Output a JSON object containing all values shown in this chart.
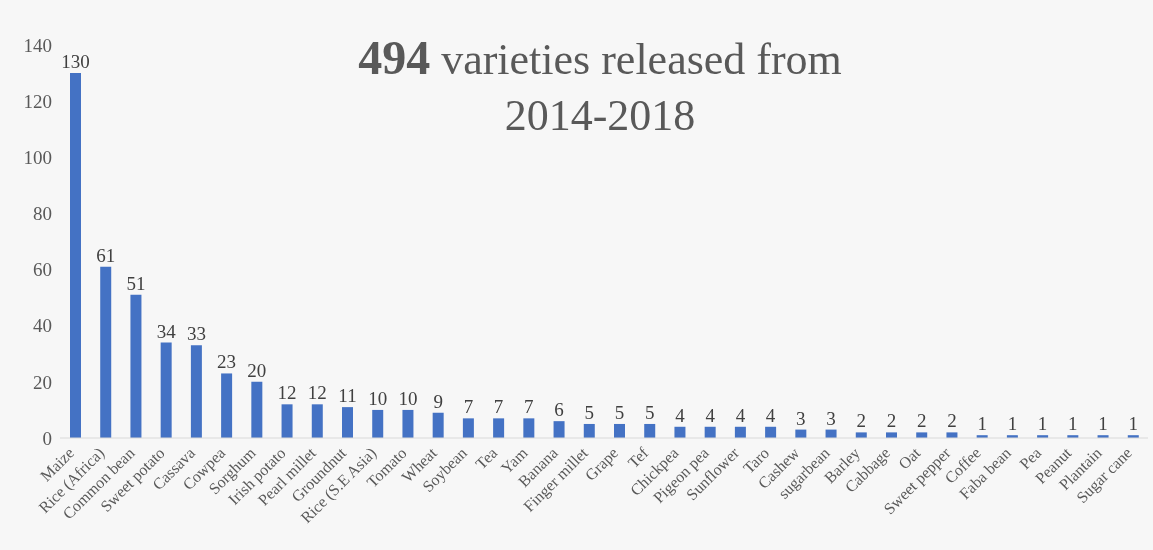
{
  "chart_data": {
    "type": "bar",
    "title": "494 varieties released from 2014-2018",
    "categories": [
      "Maize",
      "Rice (Africa)",
      "Common bean",
      "Sweet potato",
      "Cassava",
      "Cowpea",
      "Sorghum",
      "Irish potato",
      "Pearl millet",
      "Groundnut",
      "Rice (S.E Asia)",
      "Tomato",
      "Wheat",
      "Soybean",
      "Tea",
      "Yam",
      "Banana",
      "Finger millet",
      "Grape",
      "Tef",
      "Chickpea",
      "Pigeon pea",
      "Sunflower",
      "Taro",
      "Cashew",
      "sugarbean",
      "Barley",
      "Cabbage",
      "Oat",
      "Sweet pepper",
      "Coffee",
      "Faba bean",
      "Pea",
      "Peanut",
      "Plantain",
      "Sugar cane"
    ],
    "values": [
      130,
      61,
      51,
      34,
      33,
      23,
      20,
      12,
      12,
      11,
      10,
      10,
      9,
      7,
      7,
      7,
      6,
      5,
      5,
      5,
      4,
      4,
      4,
      4,
      3,
      3,
      2,
      2,
      2,
      2,
      1,
      1,
      1,
      1,
      1,
      1
    ],
    "color": "#4472c4",
    "ylim": [
      0,
      140
    ],
    "yticks": [
      0,
      20,
      40,
      60,
      80,
      100,
      120,
      140
    ],
    "grid": false,
    "legend": false,
    "data_labels": true
  }
}
